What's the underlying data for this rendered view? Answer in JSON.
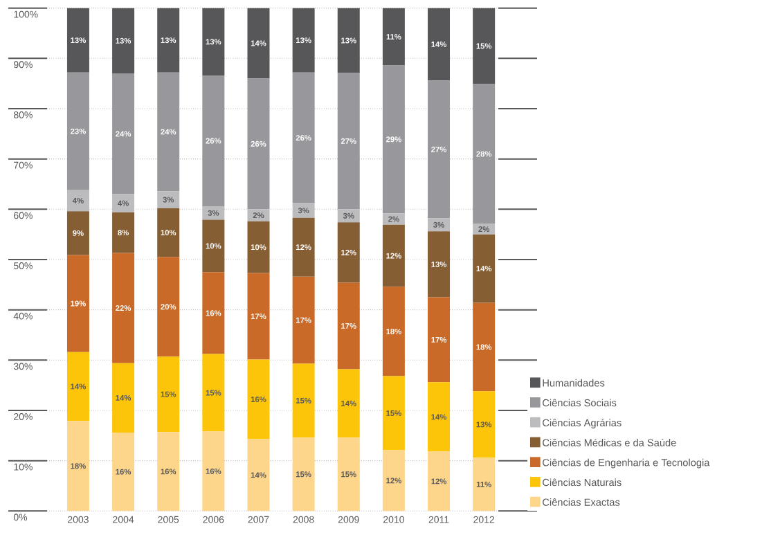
{
  "chart_data": {
    "type": "bar",
    "stacked": true,
    "categories": [
      "2003",
      "2004",
      "2005",
      "2006",
      "2007",
      "2008",
      "2009",
      "2010",
      "2011",
      "2012"
    ],
    "series": [
      {
        "name": "Ciências Exactas",
        "color": "#fdd68c",
        "values": [
          17.9,
          15.6,
          15.7,
          15.8,
          14.3,
          14.6,
          14.6,
          12.1,
          11.8,
          10.6
        ],
        "value_labels": [
          "18%",
          "16%",
          "16%",
          "16%",
          "14%",
          "15%",
          "15%",
          "12%",
          "12%",
          "11%"
        ]
      },
      {
        "name": "Ciências Naturais",
        "color": "#fdc50a",
        "values": [
          13.7,
          13.8,
          15.0,
          15.4,
          15.8,
          14.7,
          13.6,
          14.7,
          13.8,
          13.2
        ],
        "value_labels": [
          "14%",
          "14%",
          "15%",
          "15%",
          "16%",
          "15%",
          "14%",
          "15%",
          "14%",
          "13%"
        ]
      },
      {
        "name": "Ciências de Engenharia e Tecnologia",
        "color": "#c96a28",
        "values": [
          19.3,
          21.9,
          19.8,
          16.3,
          17.2,
          17.3,
          17.2,
          17.8,
          16.9,
          17.6
        ],
        "value_labels": [
          "19%",
          "22%",
          "20%",
          "16%",
          "17%",
          "17%",
          "17%",
          "18%",
          "17%",
          "18%"
        ]
      },
      {
        "name": "Ciências Médicas e da Saúde",
        "color": "#865e34",
        "values": [
          8.7,
          8.1,
          9.7,
          10.4,
          10.3,
          11.7,
          12.0,
          12.3,
          13.1,
          13.6
        ],
        "value_labels": [
          "9%",
          "8%",
          "10%",
          "10%",
          "10%",
          "12%",
          "12%",
          "12%",
          "13%",
          "14%"
        ]
      },
      {
        "name": "Ciências Agrárias",
        "color": "#bcbcbf",
        "values": [
          4.2,
          3.6,
          3.4,
          2.7,
          2.4,
          2.9,
          2.6,
          2.3,
          2.6,
          2.1
        ],
        "value_labels": [
          "4%",
          "4%",
          "3%",
          "3%",
          "2%",
          "3%",
          "3%",
          "2%",
          "3%",
          "2%"
        ]
      },
      {
        "name": "Ciências Sociais",
        "color": "#98989c",
        "values": [
          23.4,
          24.0,
          23.6,
          26.0,
          26.0,
          26.0,
          27.1,
          29.4,
          27.4,
          27.8
        ],
        "value_labels": [
          "23%",
          "24%",
          "24%",
          "26%",
          "26%",
          "26%",
          "27%",
          "29%",
          "27%",
          "28%"
        ]
      },
      {
        "name": "Humanidades",
        "color": "#57575a",
        "values": [
          12.8,
          13.0,
          12.8,
          13.4,
          14.0,
          12.8,
          12.9,
          11.4,
          14.4,
          15.1
        ],
        "value_labels": [
          "13%",
          "13%",
          "13%",
          "13%",
          "14%",
          "13%",
          "13%",
          "11%",
          "14%",
          "15%"
        ]
      }
    ],
    "ylim": [
      0,
      100
    ],
    "yticks": [
      {
        "value": 0,
        "label": "0%"
      },
      {
        "value": 10,
        "label": "10%"
      },
      {
        "value": 20,
        "label": "20%"
      },
      {
        "value": 30,
        "label": "30%"
      },
      {
        "value": 40,
        "label": "40%"
      },
      {
        "value": 50,
        "label": "50%"
      },
      {
        "value": 60,
        "label": "60%"
      },
      {
        "value": 70,
        "label": "70%"
      },
      {
        "value": 80,
        "label": "80%"
      },
      {
        "value": 90,
        "label": "90%"
      },
      {
        "value": 100,
        "label": "100%"
      }
    ],
    "grid": "y",
    "legend": "right"
  }
}
